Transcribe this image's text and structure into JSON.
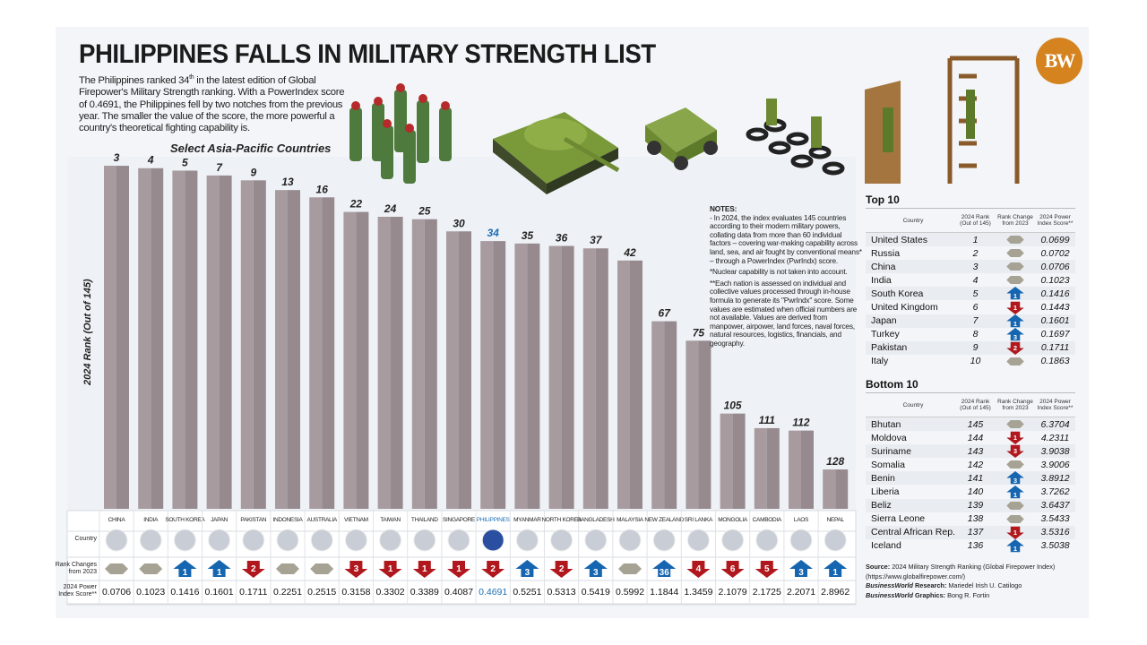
{
  "header": {
    "title": "PHILIPPINES FALLS IN MILITARY STRENGTH LIST",
    "intro_a": "The Philippines ranked 34",
    "intro_sup": "th",
    "intro_b": " in the latest edition of  Global Firepower's Military Strength ranking. With a PowerIndex score of 0.4691, the Philippines fell by two notches from the previous year. The smaller the value of the score, the more powerful a country's theoretical fighting capability is.",
    "logo": "BW"
  },
  "chart_data": {
    "type": "bar",
    "title": "Select Asia-Pacific Countries",
    "ylabel": "2024 Rank (Out of 145)",
    "highlight": "PHILIPPINES",
    "colors": {
      "bar": "#9e9195",
      "highlight_text": "#1f6fb5",
      "up": "#1565b0",
      "down": "#b0181e",
      "same": "#a7a394"
    },
    "categories": [
      "CHINA",
      "INDIA",
      "SOUTH KOREA",
      "JAPAN",
      "PAKISTAN",
      "INDONESIA",
      "AUSTRALIA",
      "VIETNAM",
      "TAIWAN",
      "THAILAND",
      "SINGAPORE",
      "PHILIPPINES",
      "MYANMAR",
      "NORTH KOREA",
      "BANGLADESH",
      "MALAYSIA",
      "NEW ZEALAND",
      "SRI LANKA",
      "MONGOLIA",
      "CAMBODIA",
      "LAOS",
      "NEPAL"
    ],
    "values": [
      3,
      4,
      5,
      7,
      9,
      13,
      16,
      22,
      24,
      25,
      30,
      34,
      35,
      36,
      37,
      42,
      67,
      75,
      105,
      111,
      112,
      128
    ],
    "rank_changes": [
      0,
      0,
      1,
      1,
      -2,
      0,
      0,
      -3,
      -1,
      -1,
      -1,
      -2,
      3,
      -2,
      3,
      0,
      36,
      -4,
      -6,
      -5,
      3,
      1
    ],
    "power_index": [
      "0.0706",
      "0.1023",
      "0.1416",
      "0.1601",
      "0.1711",
      "0.2251",
      "0.2515",
      "0.3158",
      "0.3302",
      "0.3389",
      "0.4087",
      "0.4691",
      "0.5251",
      "0.5313",
      "0.5419",
      "0.5992",
      "1.1844",
      "1.3459",
      "2.1079",
      "2.1725",
      "2.2071",
      "2.8962"
    ],
    "row_labels": {
      "country": "Country",
      "rank_change": "Rank Changes from 2023",
      "power": "2024 Power Index Score**"
    }
  },
  "notes": {
    "heading": "NOTES:",
    "p1": "- In 2024, the index evaluates 145 countries according to their modern military powers, collating data from more than 60 individual factors – covering war-making capability across land, sea, and air fought by conventional means* – through a PowerIndex (PwrIndx) score.",
    "p2": "*Nuclear capability is not taken into account.",
    "p3": "**Each nation is assessed on individual and collective values processed through in-house formula to generate its \"PwrIndx\" score. Some values are estimated when official numbers are not available. Values are derived from manpower, airpower, land forces, naval forces, natural resources, logistics, financials, and geography."
  },
  "table_headers": {
    "country": "Country",
    "rank": "2024 Rank (Out of 145)",
    "change": "Rank Change from 2023",
    "score": "2024 Power Index Score**"
  },
  "top10": {
    "title": "Top 10",
    "rows": [
      {
        "country": "United States",
        "rank": "1",
        "change": 0,
        "score": "0.0699"
      },
      {
        "country": "Russia",
        "rank": "2",
        "change": 0,
        "score": "0.0702"
      },
      {
        "country": "China",
        "rank": "3",
        "change": 0,
        "score": "0.0706"
      },
      {
        "country": "India",
        "rank": "4",
        "change": 0,
        "score": "0.1023"
      },
      {
        "country": "South Korea",
        "rank": "5",
        "change": 1,
        "score": "0.1416"
      },
      {
        "country": "United Kingdom",
        "rank": "6",
        "change": -1,
        "score": "0.1443"
      },
      {
        "country": "Japan",
        "rank": "7",
        "change": 1,
        "score": "0.1601"
      },
      {
        "country": "Turkey",
        "rank": "8",
        "change": 3,
        "score": "0.1697"
      },
      {
        "country": "Pakistan",
        "rank": "9",
        "change": -2,
        "score": "0.1711"
      },
      {
        "country": "Italy",
        "rank": "10",
        "change": 0,
        "score": "0.1863"
      }
    ]
  },
  "bottom10": {
    "title": "Bottom 10",
    "rows": [
      {
        "country": "Bhutan",
        "rank": "145",
        "change": 0,
        "score": "6.3704"
      },
      {
        "country": "Moldova",
        "rank": "144",
        "change": -1,
        "score": "4.2311"
      },
      {
        "country": "Suriname",
        "rank": "143",
        "change": -3,
        "score": "3.9038"
      },
      {
        "country": "Somalia",
        "rank": "142",
        "change": 0,
        "score": "3.9006"
      },
      {
        "country": "Benin",
        "rank": "141",
        "change": 3,
        "score": "3.8912"
      },
      {
        "country": "Liberia",
        "rank": "140",
        "change": 1,
        "score": "3.7262"
      },
      {
        "country": "Beliz",
        "rank": "139",
        "change": 0,
        "score": "3.6437"
      },
      {
        "country": "Sierra Leone",
        "rank": "138",
        "change": 0,
        "score": "3.5433"
      },
      {
        "country": "Central African Rep.",
        "rank": "137",
        "change": -1,
        "score": "3.5316"
      },
      {
        "country": "Iceland",
        "rank": "136",
        "change": 1,
        "score": "3.5038"
      }
    ]
  },
  "source": {
    "label": "Source:",
    "text": " 2024 Military Strength Ranking (Global Firepower Index) (https://www.globalfirepower.com/)",
    "research_org": "BusinessWorld",
    "research_label": " Research:",
    "research_name": " Mariedel Irish U. Catilogo",
    "graphics_org": "BusinessWorld",
    "graphics_label": " Graphics:",
    "graphics_name": " Bong R. Fortin"
  }
}
